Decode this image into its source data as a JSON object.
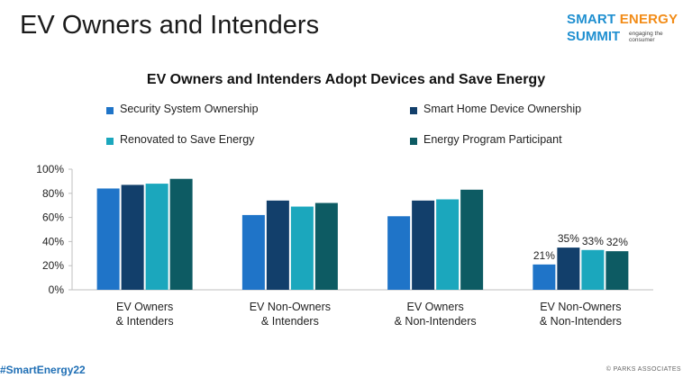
{
  "slide": {
    "title": "EV Owners and Intenders",
    "hashtag": "#SmartEnergy22",
    "copyright": "© PARKS ASSOCIATES"
  },
  "logo": {
    "line1_a": "SMART",
    "line1_b": "ENERGY",
    "line2": "SUMMIT",
    "tagline": "engaging the consumer"
  },
  "chart_data": {
    "type": "bar",
    "title": "EV Owners and Intenders Adopt Devices and Save Energy",
    "categories": [
      "EV Owners\n& Intenders",
      "EV Non-Owners\n& Intenders",
      "EV Owners\n& Non-Intenders",
      "EV Non-Owners\n& Non-Intenders"
    ],
    "series": [
      {
        "name": "Security System Ownership",
        "color": "#1f74c8",
        "values": [
          84,
          62,
          61,
          21
        ]
      },
      {
        "name": "Smart Home Device Ownership",
        "color": "#123f6b",
        "values": [
          87,
          74,
          74,
          35
        ]
      },
      {
        "name": "Renovated to Save Energy",
        "color": "#1ba7bd",
        "values": [
          88,
          69,
          75,
          33
        ]
      },
      {
        "name": "Energy Program Participant",
        "color": "#0d5b63",
        "values": [
          92,
          72,
          83,
          32
        ]
      }
    ],
    "data_labels": {
      "category_index": 3,
      "labels": [
        "21%",
        "35%",
        "33%",
        "32%"
      ]
    },
    "ylim": [
      0,
      100
    ],
    "yticks": [
      "0%",
      "20%",
      "40%",
      "60%",
      "80%",
      "100%"
    ],
    "legend_position": "top",
    "grid": false
  }
}
